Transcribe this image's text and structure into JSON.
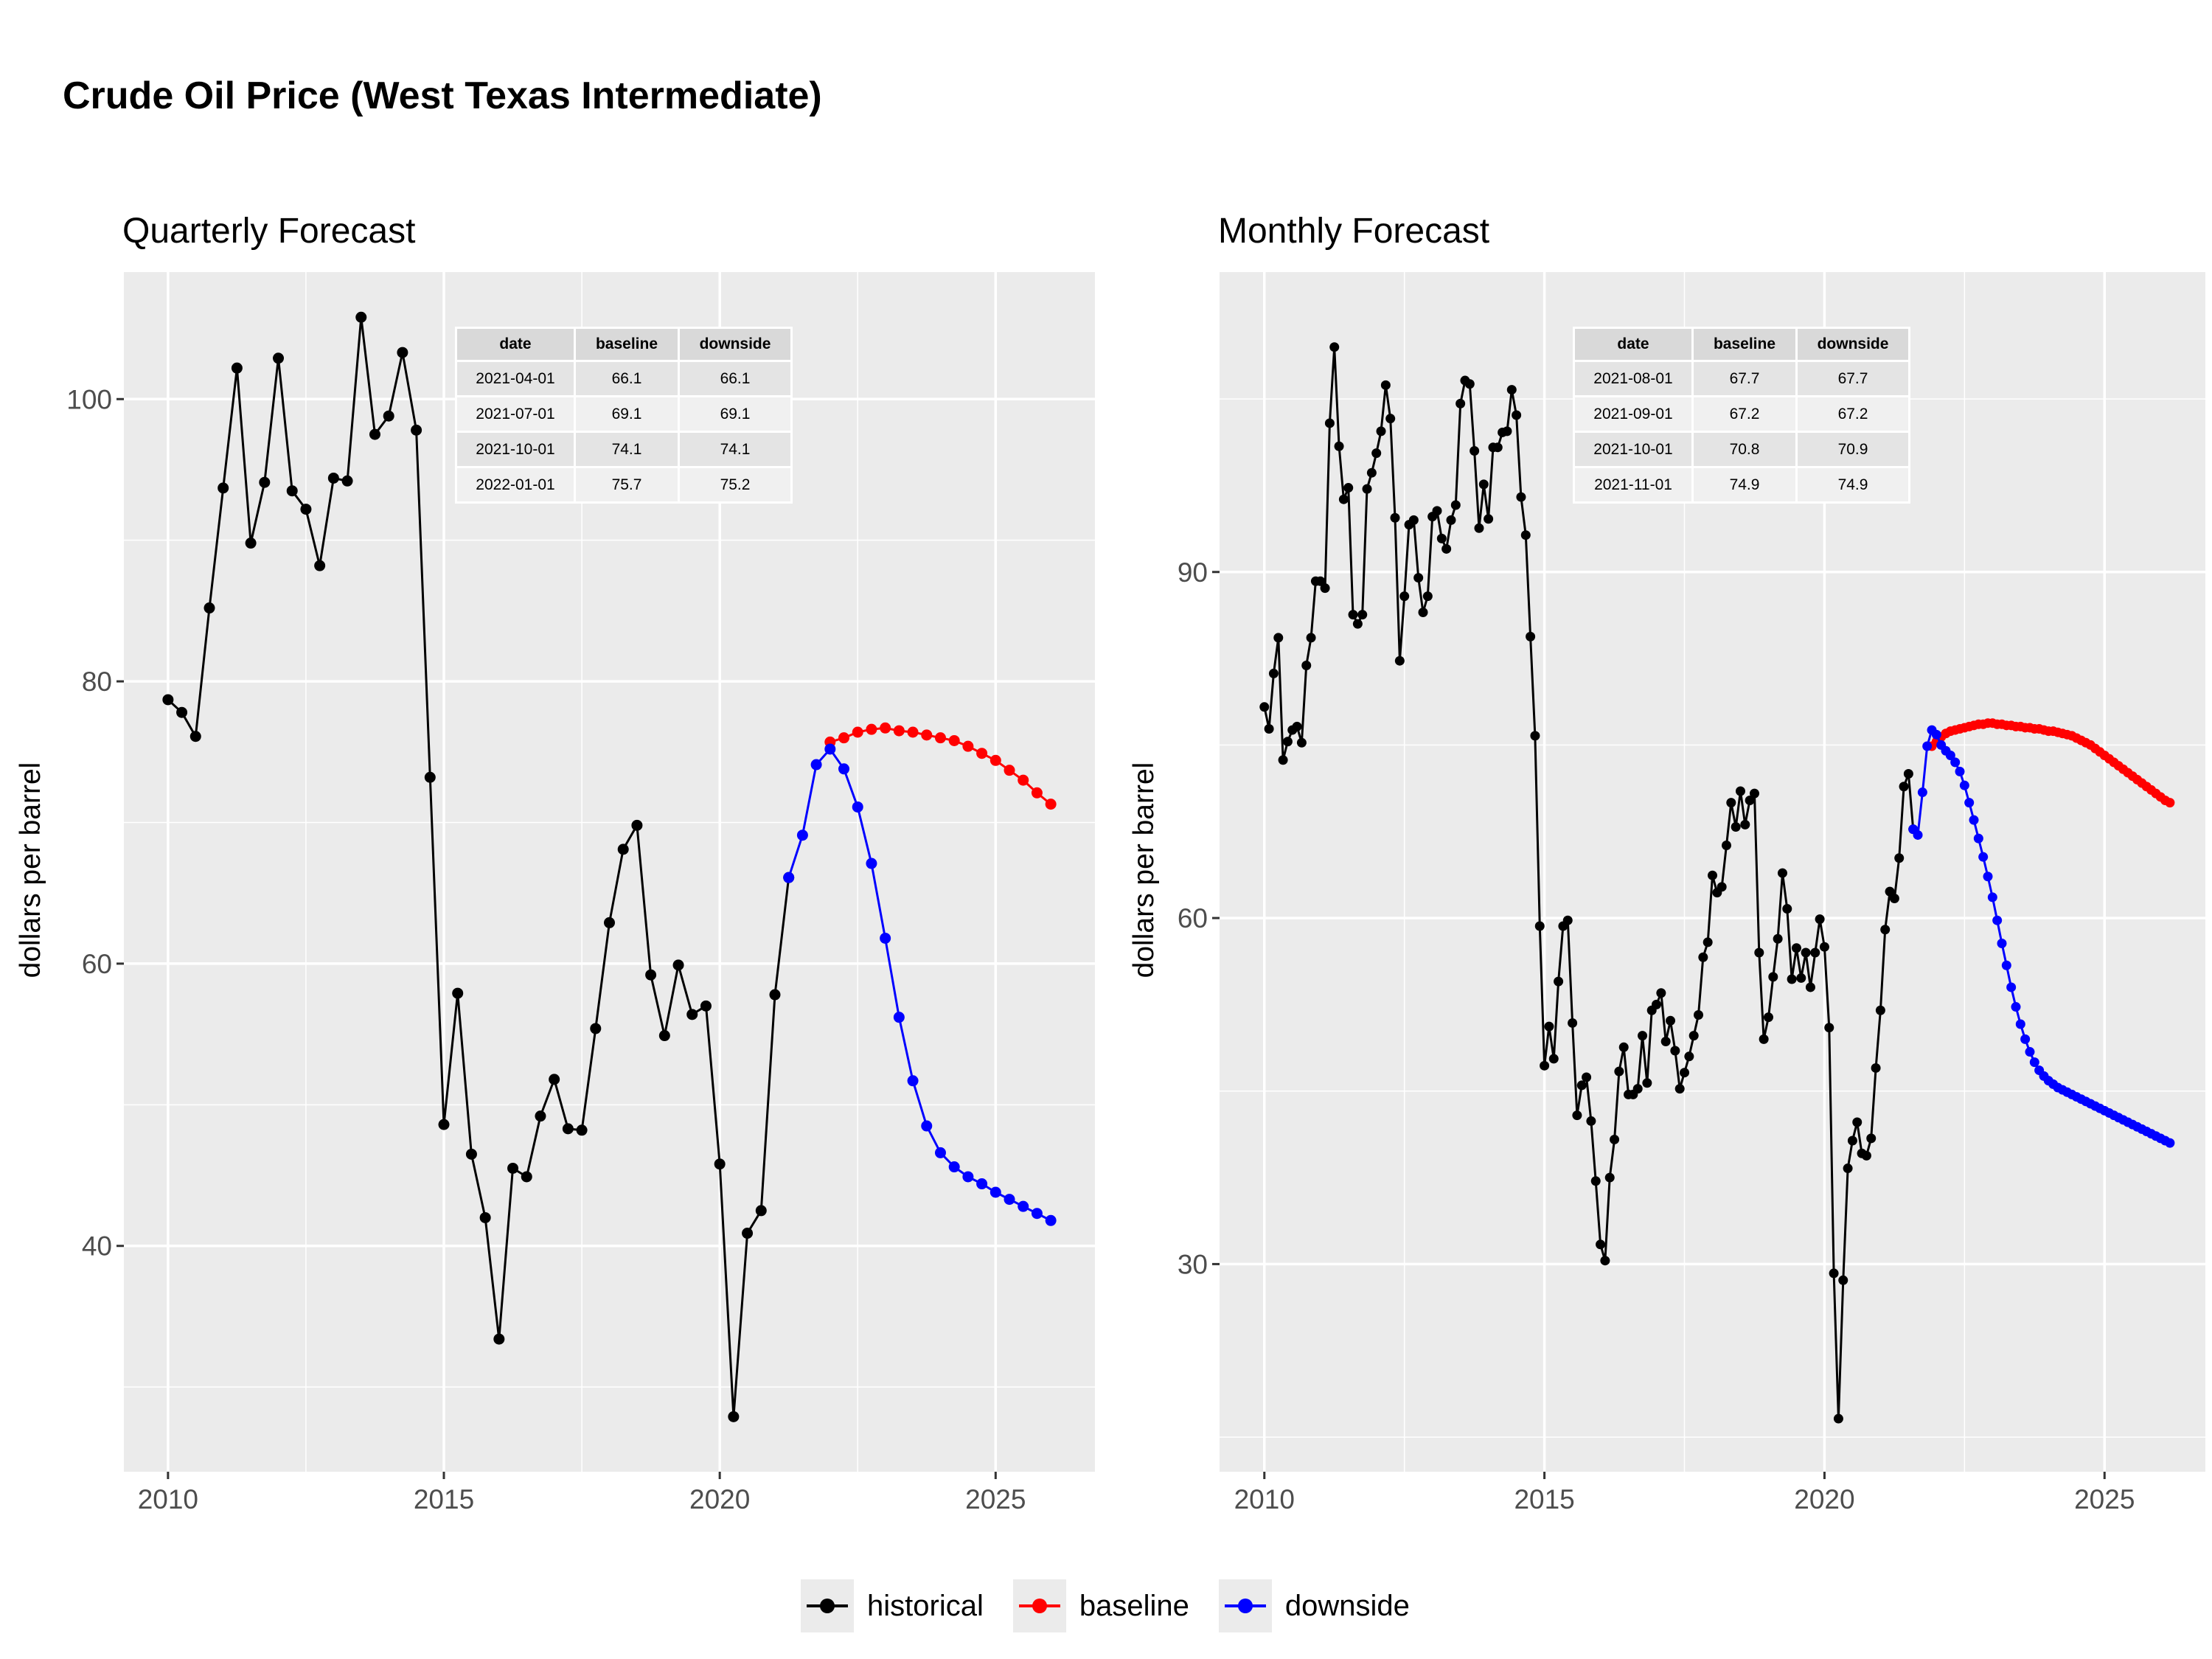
{
  "title": "Crude Oil Price (West Texas Intermediate)",
  "legend": [
    {
      "label": "historical",
      "color": "#000000"
    },
    {
      "label": "baseline",
      "color": "#ff0000"
    },
    {
      "label": "downside",
      "color": "#0000ff"
    }
  ],
  "chart_data": [
    {
      "type": "line",
      "subtitle": "Quarterly Forecast",
      "xlabel": "",
      "ylabel": "dollars per barrel",
      "xlim": [
        2009.2,
        2026.8
      ],
      "ylim": [
        24.0,
        109.0
      ],
      "x_ticks": [
        2010,
        2015,
        2020,
        2025
      ],
      "y_ticks": [
        40,
        60,
        80,
        100
      ],
      "grid": true,
      "legend_position": "bottom",
      "table": {
        "headers": [
          "date",
          "baseline",
          "downside"
        ],
        "rows": [
          [
            "2021-04-01",
            "66.1",
            "66.1"
          ],
          [
            "2021-07-01",
            "69.1",
            "69.1"
          ],
          [
            "2021-10-01",
            "74.1",
            "74.1"
          ],
          [
            "2022-01-01",
            "75.7",
            "75.2"
          ]
        ]
      },
      "series": [
        {
          "name": "historical",
          "color": "#000000",
          "x": [
            2010.0,
            2010.25,
            2010.5,
            2010.75,
            2011.0,
            2011.25,
            2011.5,
            2011.75,
            2012.0,
            2012.25,
            2012.5,
            2012.75,
            2013.0,
            2013.25,
            2013.5,
            2013.75,
            2014.0,
            2014.25,
            2014.5,
            2014.75,
            2015.0,
            2015.25,
            2015.5,
            2015.75,
            2016.0,
            2016.25,
            2016.5,
            2016.75,
            2017.0,
            2017.25,
            2017.5,
            2017.75,
            2018.0,
            2018.25,
            2018.5,
            2018.75,
            2019.0,
            2019.25,
            2019.5,
            2019.75,
            2020.0,
            2020.25,
            2020.5,
            2020.75,
            2021.0,
            2021.25
          ],
          "y": [
            78.7,
            77.8,
            76.1,
            85.2,
            93.7,
            102.2,
            89.8,
            94.1,
            102.9,
            93.5,
            92.2,
            88.2,
            94.4,
            94.2,
            105.8,
            97.5,
            98.8,
            103.3,
            97.8,
            73.2,
            48.6,
            57.9,
            46.5,
            42.0,
            33.4,
            45.5,
            44.9,
            49.2,
            51.8,
            48.3,
            48.2,
            55.4,
            62.9,
            68.1,
            69.8,
            59.2,
            54.9,
            59.9,
            56.4,
            57.0,
            45.8,
            27.9,
            40.9,
            42.5,
            57.8,
            66.1
          ]
        },
        {
          "name": "baseline",
          "color": "#ff0000",
          "x": [
            2022.0,
            2022.25,
            2022.5,
            2022.75,
            2023.0,
            2023.25,
            2023.5,
            2023.75,
            2024.0,
            2024.25,
            2024.5,
            2024.75,
            2025.0,
            2025.25,
            2025.5,
            2025.75,
            2026.0
          ],
          "y": [
            75.7,
            76.0,
            76.4,
            76.6,
            76.7,
            76.5,
            76.4,
            76.2,
            76.0,
            75.8,
            75.4,
            74.9,
            74.4,
            73.7,
            73.0,
            72.1,
            71.3
          ]
        },
        {
          "name": "downside",
          "color": "#0000ff",
          "x": [
            2021.25,
            2021.5,
            2021.75,
            2022.0,
            2022.25,
            2022.5,
            2022.75,
            2023.0,
            2023.25,
            2023.5,
            2023.75,
            2024.0,
            2024.25,
            2024.5,
            2024.75,
            2025.0,
            2025.25,
            2025.5,
            2025.75,
            2026.0
          ],
          "y": [
            66.1,
            69.1,
            74.1,
            75.2,
            73.8,
            71.1,
            67.1,
            61.8,
            56.2,
            51.7,
            48.5,
            46.6,
            45.6,
            44.9,
            44.4,
            43.8,
            43.3,
            42.8,
            42.3,
            41.8
          ]
        }
      ]
    },
    {
      "type": "line",
      "subtitle": "Monthly Forecast",
      "xlabel": "",
      "ylabel": "dollars per barrel",
      "xlim": [
        2009.2,
        2026.8
      ],
      "ylim": [
        12.0,
        116.0
      ],
      "x_ticks": [
        2010,
        2015,
        2020,
        2025
      ],
      "y_ticks": [
        30,
        60,
        90
      ],
      "grid": true,
      "legend_position": "bottom",
      "table": {
        "headers": [
          "date",
          "baseline",
          "downside"
        ],
        "rows": [
          [
            "2021-08-01",
            "67.7",
            "67.7"
          ],
          [
            "2021-09-01",
            "67.2",
            "67.2"
          ],
          [
            "2021-10-01",
            "70.8",
            "70.9"
          ],
          [
            "2021-11-01",
            "74.9",
            "74.9"
          ]
        ]
      },
      "series": [
        {
          "name": "historical",
          "color": "#000000",
          "x": [
            2010.0,
            2010.0833,
            2010.1667,
            2010.25,
            2010.3333,
            2010.4167,
            2010.5,
            2010.5833,
            2010.6667,
            2010.75,
            2010.8333,
            2010.9167,
            2011.0,
            2011.0833,
            2011.1667,
            2011.25,
            2011.3333,
            2011.4167,
            2011.5,
            2011.5833,
            2011.6667,
            2011.75,
            2011.8333,
            2011.9167,
            2012.0,
            2012.0833,
            2012.1667,
            2012.25,
            2012.3333,
            2012.4167,
            2012.5,
            2012.5833,
            2012.6667,
            2012.75,
            2012.8333,
            2012.9167,
            2013.0,
            2013.0833,
            2013.1667,
            2013.25,
            2013.3333,
            2013.4167,
            2013.5,
            2013.5833,
            2013.6667,
            2013.75,
            2013.8333,
            2013.9167,
            2014.0,
            2014.0833,
            2014.1667,
            2014.25,
            2014.3333,
            2014.4167,
            2014.5,
            2014.5833,
            2014.6667,
            2014.75,
            2014.8333,
            2014.9167,
            2015.0,
            2015.0833,
            2015.1667,
            2015.25,
            2015.3333,
            2015.4167,
            2015.5,
            2015.5833,
            2015.6667,
            2015.75,
            2015.8333,
            2015.9167,
            2016.0,
            2016.0833,
            2016.1667,
            2016.25,
            2016.3333,
            2016.4167,
            2016.5,
            2016.5833,
            2016.6667,
            2016.75,
            2016.8333,
            2016.9167,
            2017.0,
            2017.0833,
            2017.1667,
            2017.25,
            2017.3333,
            2017.4167,
            2017.5,
            2017.5833,
            2017.6667,
            2017.75,
            2017.8333,
            2017.9167,
            2018.0,
            2018.0833,
            2018.1667,
            2018.25,
            2018.3333,
            2018.4167,
            2018.5,
            2018.5833,
            2018.6667,
            2018.75,
            2018.8333,
            2018.9167,
            2019.0,
            2019.0833,
            2019.1667,
            2019.25,
            2019.3333,
            2019.4167,
            2019.5,
            2019.5833,
            2019.6667,
            2019.75,
            2019.8333,
            2019.9167,
            2020.0,
            2020.0833,
            2020.1667,
            2020.25,
            2020.3333,
            2020.4167,
            2020.5,
            2020.5833,
            2020.6667,
            2020.75,
            2020.8333,
            2020.9167,
            2021.0,
            2021.0833,
            2021.1667,
            2021.25,
            2021.3333,
            2021.4167,
            2021.5,
            2021.5833
          ],
          "y": [
            78.3,
            76.4,
            81.2,
            84.3,
            73.7,
            75.3,
            76.3,
            76.6,
            75.2,
            81.9,
            84.3,
            89.2,
            89.2,
            88.6,
            102.9,
            109.5,
            100.9,
            96.3,
            97.3,
            86.3,
            85.5,
            86.3,
            97.2,
            98.6,
            100.3,
            102.2,
            106.2,
            103.3,
            94.7,
            82.3,
            87.9,
            94.1,
            94.5,
            89.5,
            86.5,
            87.9,
            94.8,
            95.3,
            92.9,
            92.0,
            94.5,
            95.8,
            104.6,
            106.6,
            106.3,
            100.5,
            93.8,
            97.6,
            94.6,
            100.8,
            100.8,
            102.1,
            102.2,
            105.8,
            103.6,
            96.5,
            93.2,
            84.4,
            75.8,
            59.3,
            47.2,
            50.6,
            47.8,
            54.5,
            59.3,
            59.8,
            50.9,
            42.9,
            45.5,
            46.2,
            42.4,
            37.2,
            31.7,
            30.3,
            37.5,
            40.8,
            46.7,
            48.8,
            44.7,
            44.7,
            45.2,
            49.8,
            45.7,
            52.0,
            52.5,
            53.5,
            49.3,
            51.1,
            48.5,
            45.2,
            46.6,
            48.0,
            49.8,
            51.6,
            56.6,
            57.9,
            63.7,
            62.2,
            62.7,
            66.3,
            70.0,
            67.9,
            71.0,
            68.1,
            70.2,
            70.8,
            57.0,
            49.5,
            51.4,
            54.9,
            58.2,
            63.9,
            60.8,
            54.7,
            57.4,
            54.8,
            57.0,
            54.0,
            57.0,
            59.9,
            57.5,
            50.5,
            29.2,
            16.6,
            28.6,
            38.3,
            40.7,
            42.3,
            39.6,
            39.4,
            40.9,
            47.0,
            52.0,
            59.0,
            62.3,
            61.7,
            65.2,
            71.4,
            72.5,
            67.7
          ]
        },
        {
          "name": "baseline",
          "color": "#ff0000",
          "x": [
            2021.9167,
            2022.0,
            2022.0833,
            2022.1667,
            2022.25,
            2022.3333,
            2022.4167,
            2022.5,
            2022.5833,
            2022.6667,
            2022.75,
            2022.8333,
            2022.9167,
            2023.0,
            2023.0833,
            2023.1667,
            2023.25,
            2023.3333,
            2023.4167,
            2023.5,
            2023.5833,
            2023.6667,
            2023.75,
            2023.8333,
            2023.9167,
            2024.0,
            2024.0833,
            2024.1667,
            2024.25,
            2024.3333,
            2024.4167,
            2024.5,
            2024.5833,
            2024.6667,
            2024.75,
            2024.8333,
            2024.9167,
            2025.0,
            2025.0833,
            2025.1667,
            2025.25,
            2025.3333,
            2025.4167,
            2025.5,
            2025.5833,
            2025.6667,
            2025.75,
            2025.8333,
            2025.9167,
            2026.0,
            2026.0833,
            2026.1667
          ],
          "y": [
            74.9,
            75.3,
            75.7,
            76.0,
            76.2,
            76.3,
            76.4,
            76.5,
            76.6,
            76.7,
            76.8,
            76.8,
            76.9,
            76.9,
            76.8,
            76.8,
            76.7,
            76.7,
            76.6,
            76.6,
            76.5,
            76.5,
            76.4,
            76.4,
            76.3,
            76.2,
            76.2,
            76.1,
            76.0,
            75.9,
            75.8,
            75.6,
            75.4,
            75.2,
            75.0,
            74.7,
            74.4,
            74.1,
            73.8,
            73.5,
            73.2,
            72.9,
            72.6,
            72.3,
            72.0,
            71.7,
            71.4,
            71.1,
            70.8,
            70.5,
            70.2,
            70.0
          ]
        },
        {
          "name": "downside",
          "color": "#0000ff",
          "x": [
            2021.5833,
            2021.6667,
            2021.75,
            2021.8333,
            2021.9167,
            2022.0,
            2022.0833,
            2022.1667,
            2022.25,
            2022.3333,
            2022.4167,
            2022.5,
            2022.5833,
            2022.6667,
            2022.75,
            2022.8333,
            2022.9167,
            2023.0,
            2023.0833,
            2023.1667,
            2023.25,
            2023.3333,
            2023.4167,
            2023.5,
            2023.5833,
            2023.6667,
            2023.75,
            2023.8333,
            2023.9167,
            2024.0,
            2024.0833,
            2024.1667,
            2024.25,
            2024.3333,
            2024.4167,
            2024.5,
            2024.5833,
            2024.6667,
            2024.75,
            2024.8333,
            2024.9167,
            2025.0,
            2025.0833,
            2025.1667,
            2025.25,
            2025.3333,
            2025.4167,
            2025.5,
            2025.5833,
            2025.6667,
            2025.75,
            2025.8333,
            2025.9167,
            2026.0,
            2026.0833,
            2026.1667
          ],
          "y": [
            67.7,
            67.2,
            70.9,
            74.9,
            76.3,
            75.9,
            75.0,
            74.5,
            74.1,
            73.5,
            72.7,
            71.5,
            70.0,
            68.5,
            66.9,
            65.3,
            63.6,
            61.8,
            59.8,
            57.8,
            55.9,
            54.0,
            52.3,
            50.8,
            49.5,
            48.4,
            47.5,
            46.8,
            46.3,
            45.9,
            45.6,
            45.3,
            45.1,
            44.9,
            44.7,
            44.5,
            44.3,
            44.1,
            43.9,
            43.7,
            43.5,
            43.3,
            43.1,
            42.9,
            42.7,
            42.5,
            42.3,
            42.1,
            41.9,
            41.7,
            41.5,
            41.3,
            41.1,
            40.9,
            40.7,
            40.5
          ]
        }
      ]
    }
  ]
}
